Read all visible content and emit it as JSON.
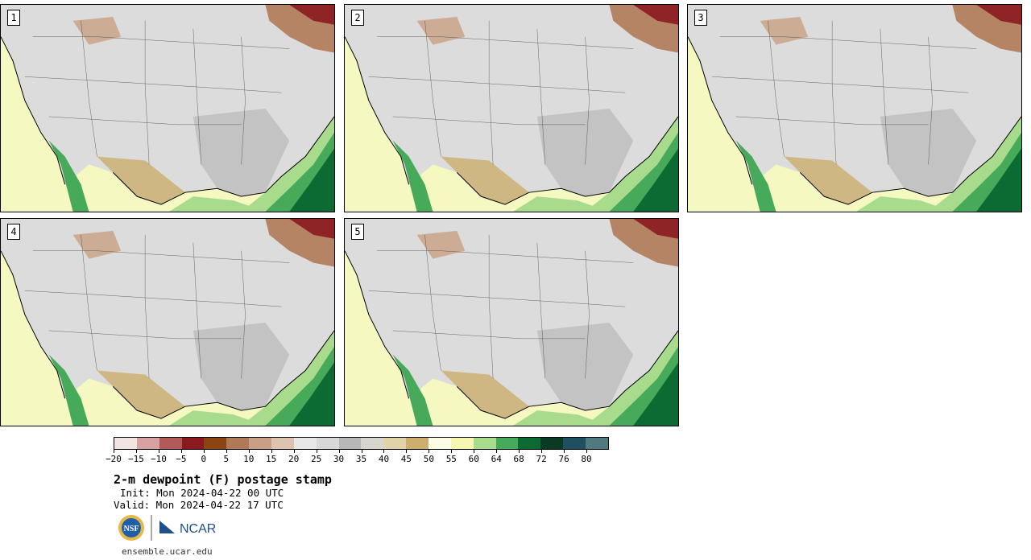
{
  "panels": [
    {
      "number": "1"
    },
    {
      "number": "2"
    },
    {
      "number": "3"
    },
    {
      "number": "4"
    },
    {
      "number": "5"
    }
  ],
  "colorbar": {
    "colors": [
      "#f3e4e4",
      "#d7a1a1",
      "#b05a5a",
      "#8b1a1f",
      "#8b4513",
      "#b07a58",
      "#c9a085",
      "#ddc3b0",
      "#e8e8e8",
      "#d8d8d8",
      "#b8b8b8",
      "#d6d6cc",
      "#e0d3a8",
      "#ccae6e",
      "#fdfde6",
      "#f6f8b2",
      "#a8dc8c",
      "#46aa5a",
      "#0b6b32",
      "#0a3b22",
      "#1e5060",
      "#517a80"
    ],
    "tick_labels": [
      "−20",
      "−15",
      "−10",
      "−5",
      "0",
      "5",
      "10",
      "15",
      "20",
      "25",
      "30",
      "35",
      "40",
      "45",
      "50",
      "55",
      "60",
      "64",
      "68",
      "72",
      "76",
      "80"
    ]
  },
  "title": "2-m dewpoint (F) postage stamp",
  "init": "Init: Mon 2024-04-22 00 UTC",
  "valid": "Valid: Mon 2024-04-22 17 UTC",
  "logo_nsf": "NSF",
  "logo_ncar": "NCAR",
  "website": "ensemble.ucar.edu",
  "map_colors": {
    "ocean": "#f5f8c0",
    "land": "#dcdcdc",
    "gulf_deep": "#0b6b32",
    "gulf_mid": "#46aa5a",
    "gulf_light": "#a8dc8c",
    "dry_brown": "#b07a58",
    "very_dry": "#8b1a1f",
    "tan": "#ccae6e"
  }
}
